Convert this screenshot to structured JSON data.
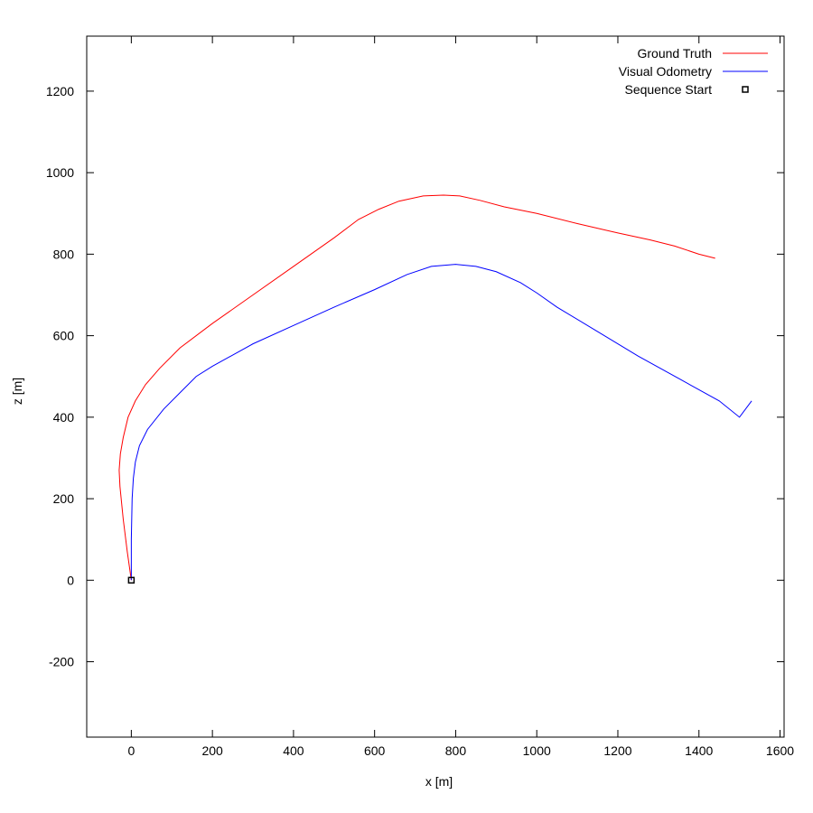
{
  "chart_data": {
    "type": "line",
    "xlabel": "x [m]",
    "ylabel": "z [m]",
    "xlim": [
      -110,
      1610
    ],
    "ylim": [
      -385,
      1335
    ],
    "xticks": [
      0,
      200,
      400,
      600,
      800,
      1000,
      1200,
      1400,
      1600
    ],
    "yticks": [
      -200,
      0,
      200,
      400,
      600,
      800,
      1000,
      1200
    ],
    "grid": false,
    "legend_position": "top-right",
    "series": [
      {
        "name": "Ground Truth",
        "color": "#ff0000",
        "x": [
          0,
          -10,
          -20,
          -28,
          -30,
          -27,
          -20,
          -8,
          10,
          35,
          70,
          120,
          200,
          300,
          400,
          500,
          560,
          610,
          660,
          720,
          770,
          810,
          860,
          920,
          1000,
          1100,
          1200,
          1280,
          1340,
          1400,
          1440
        ],
        "y": [
          0,
          70,
          150,
          230,
          270,
          310,
          350,
          400,
          440,
          480,
          520,
          570,
          630,
          700,
          770,
          840,
          885,
          910,
          930,
          943,
          945,
          943,
          932,
          916,
          900,
          875,
          852,
          835,
          820,
          800,
          790
        ]
      },
      {
        "name": "Visual Odometry",
        "color": "#0000ff",
        "x": [
          0,
          0,
          2,
          5,
          10,
          20,
          40,
          80,
          120,
          160,
          200,
          300,
          400,
          500,
          600,
          680,
          740,
          800,
          850,
          900,
          960,
          1000,
          1050,
          1150,
          1250,
          1350,
          1450,
          1500,
          1530
        ],
        "y": [
          0,
          100,
          200,
          250,
          290,
          330,
          370,
          420,
          460,
          500,
          525,
          580,
          625,
          670,
          713,
          750,
          770,
          775,
          770,
          757,
          730,
          705,
          670,
          610,
          550,
          495,
          440,
          400,
          440
        ]
      }
    ],
    "markers": [
      {
        "name": "Sequence Start",
        "x": 0,
        "y": 0,
        "color": "#000000",
        "shape": "square"
      }
    ]
  }
}
